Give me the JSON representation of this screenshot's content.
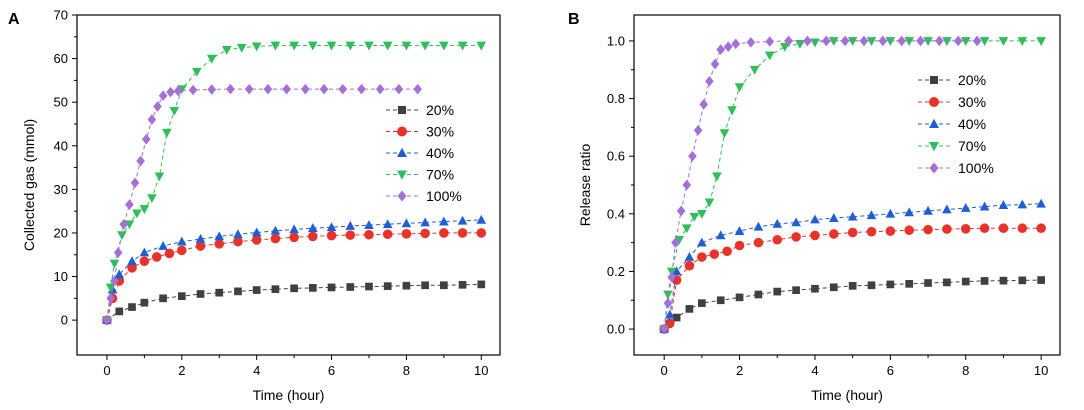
{
  "chart_data": [
    {
      "type": "line",
      "panel_label": "A",
      "xlabel": "Time (hour)",
      "ylabel": "Collected gas (mmol)",
      "xlim": [
        -0.8,
        10.5
      ],
      "ylim": [
        -8,
        70
      ],
      "xticks": [
        "0",
        "2",
        "4",
        "6",
        "8",
        "10"
      ],
      "xtick_values": [
        0,
        2,
        4,
        6,
        8,
        10
      ],
      "yticks": [
        "0",
        "10",
        "20",
        "30",
        "40",
        "50",
        "60",
        "70"
      ],
      "ytick_values": [
        0,
        10,
        20,
        30,
        40,
        50,
        60,
        70
      ],
      "legend_position": "center-right",
      "series": [
        {
          "name": "20%",
          "color": "#404040",
          "marker": "square",
          "x": [
            0,
            0.33,
            0.67,
            1,
            1.5,
            2,
            2.5,
            3,
            3.5,
            4,
            4.5,
            5,
            5.5,
            6,
            6.5,
            7,
            7.5,
            8,
            8.5,
            9,
            9.5,
            10
          ],
          "y": [
            0,
            2,
            3,
            4,
            5,
            5.5,
            6,
            6.3,
            6.6,
            6.9,
            7.1,
            7.3,
            7.4,
            7.5,
            7.6,
            7.7,
            7.8,
            7.9,
            8.0,
            8.0,
            8.1,
            8.2
          ]
        },
        {
          "name": "30%",
          "color": "#e8332a",
          "marker": "circle",
          "x": [
            0,
            0.15,
            0.33,
            0.67,
            1,
            1.33,
            1.67,
            2,
            2.5,
            3,
            3.5,
            4,
            4.5,
            5,
            5.5,
            6,
            6.5,
            7,
            7.5,
            8,
            8.5,
            9,
            9.5,
            10
          ],
          "y": [
            0,
            5,
            9,
            12,
            13.5,
            14.5,
            15.3,
            16,
            17,
            17.5,
            18,
            18.4,
            18.7,
            19,
            19.2,
            19.4,
            19.5,
            19.6,
            19.7,
            19.8,
            19.9,
            20,
            20,
            20
          ]
        },
        {
          "name": "40%",
          "color": "#1f5fd6",
          "marker": "triangle-up",
          "x": [
            0,
            0.15,
            0.33,
            0.67,
            1,
            1.5,
            2,
            2.5,
            3,
            3.5,
            4,
            4.5,
            5,
            5.5,
            6,
            6.5,
            7,
            7.5,
            8,
            8.5,
            9,
            9.5,
            10
          ],
          "y": [
            0,
            7,
            10.5,
            13.5,
            15.5,
            17,
            18,
            18.6,
            19.2,
            19.7,
            20.1,
            20.5,
            20.8,
            21.1,
            21.3,
            21.6,
            21.8,
            22,
            22.2,
            22.4,
            22.6,
            22.8,
            23
          ]
        },
        {
          "name": "70%",
          "color": "#2fbf5a",
          "marker": "triangle-down",
          "x": [
            0,
            0.1,
            0.2,
            0.4,
            0.6,
            0.8,
            1.0,
            1.2,
            1.4,
            1.6,
            1.8,
            2.0,
            2.4,
            2.8,
            3.2,
            3.6,
            4,
            4.5,
            5,
            5.5,
            6,
            6.5,
            7,
            7.5,
            8,
            8.5,
            9,
            9.5,
            10
          ],
          "y": [
            0,
            7.5,
            13,
            19.5,
            22,
            24.5,
            25.5,
            28,
            33,
            43,
            48,
            53,
            57,
            60,
            62,
            62.5,
            62.8,
            63,
            63,
            63,
            63,
            63,
            63,
            63,
            63,
            63,
            63,
            63,
            63
          ]
        },
        {
          "name": "100%",
          "color": "#a66fd8",
          "marker": "diamond",
          "x": [
            0,
            0.1,
            0.2,
            0.3,
            0.45,
            0.6,
            0.75,
            0.9,
            1.05,
            1.2,
            1.35,
            1.5,
            1.7,
            1.9,
            2.3,
            2.8,
            3.3,
            3.8,
            4.3,
            4.8,
            5.3,
            5.8,
            6.3,
            6.8,
            7.3,
            7.8,
            8.3
          ],
          "y": [
            0,
            5,
            9,
            15.5,
            22,
            26.5,
            31.5,
            36.5,
            41.5,
            46,
            49,
            51.5,
            52.3,
            52.6,
            52.8,
            52.9,
            53,
            53,
            53,
            53,
            53,
            53,
            53,
            53,
            53,
            53,
            53
          ]
        }
      ]
    },
    {
      "type": "line",
      "panel_label": "B",
      "xlabel": "Time (hour)",
      "ylabel": "Release ratio",
      "xlim": [
        -0.8,
        10.5
      ],
      "ylim": [
        -0.09,
        1.09
      ],
      "xticks": [
        "0",
        "2",
        "4",
        "6",
        "8",
        "10"
      ],
      "xtick_values": [
        0,
        2,
        4,
        6,
        8,
        10
      ],
      "yticks": [
        "0.0",
        "0.2",
        "0.4",
        "0.6",
        "0.8",
        "1.0"
      ],
      "ytick_values": [
        0,
        0.2,
        0.4,
        0.6,
        0.8,
        1.0
      ],
      "legend_position": "center-right",
      "series": [
        {
          "name": "20%",
          "color": "#404040",
          "marker": "square",
          "x": [
            0,
            0.33,
            0.67,
            1,
            1.5,
            2,
            2.5,
            3,
            3.5,
            4,
            4.5,
            5,
            5.5,
            6,
            6.5,
            7,
            7.5,
            8,
            8.5,
            9,
            9.5,
            10
          ],
          "y": [
            0,
            0.04,
            0.07,
            0.09,
            0.1,
            0.11,
            0.12,
            0.13,
            0.135,
            0.14,
            0.145,
            0.15,
            0.152,
            0.155,
            0.157,
            0.16,
            0.162,
            0.165,
            0.167,
            0.168,
            0.169,
            0.17
          ]
        },
        {
          "name": "30%",
          "color": "#e8332a",
          "marker": "circle",
          "x": [
            0,
            0.15,
            0.33,
            0.67,
            1,
            1.33,
            1.67,
            2,
            2.5,
            3,
            3.5,
            4,
            4.5,
            5,
            5.5,
            6,
            6.5,
            7,
            7.5,
            8,
            8.5,
            9,
            9.5,
            10
          ],
          "y": [
            0,
            0.02,
            0.17,
            0.22,
            0.25,
            0.26,
            0.27,
            0.29,
            0.3,
            0.31,
            0.32,
            0.325,
            0.33,
            0.335,
            0.338,
            0.34,
            0.343,
            0.345,
            0.347,
            0.348,
            0.35,
            0.35,
            0.35,
            0.35
          ]
        },
        {
          "name": "40%",
          "color": "#1f5fd6",
          "marker": "triangle-up",
          "x": [
            0,
            0.15,
            0.33,
            0.67,
            1,
            1.5,
            2,
            2.5,
            3,
            3.5,
            4,
            4.5,
            5,
            5.5,
            6,
            6.5,
            7,
            7.5,
            8,
            8.5,
            9,
            9.5,
            10
          ],
          "y": [
            0,
            0.05,
            0.2,
            0.25,
            0.3,
            0.325,
            0.34,
            0.355,
            0.365,
            0.37,
            0.38,
            0.385,
            0.39,
            0.395,
            0.4,
            0.405,
            0.41,
            0.415,
            0.42,
            0.425,
            0.43,
            0.432,
            0.435
          ]
        },
        {
          "name": "70%",
          "color": "#2fbf5a",
          "marker": "triangle-down",
          "x": [
            0,
            0.1,
            0.2,
            0.4,
            0.6,
            0.8,
            1.0,
            1.2,
            1.4,
            1.6,
            1.8,
            2.0,
            2.4,
            2.8,
            3.2,
            3.6,
            4,
            4.5,
            5,
            5.5,
            6,
            6.5,
            7,
            7.5,
            8,
            8.5,
            9,
            9.5,
            10
          ],
          "y": [
            0,
            0.12,
            0.2,
            0.31,
            0.35,
            0.39,
            0.4,
            0.44,
            0.53,
            0.68,
            0.76,
            0.84,
            0.9,
            0.95,
            0.98,
            0.99,
            0.995,
            1.0,
            1.0,
            1.0,
            1.0,
            1.0,
            1.0,
            1.0,
            1.0,
            1.0,
            1.0,
            1.0,
            1.0
          ]
        },
        {
          "name": "100%",
          "color": "#a66fd8",
          "marker": "diamond",
          "x": [
            0,
            0.1,
            0.2,
            0.3,
            0.45,
            0.6,
            0.75,
            0.9,
            1.05,
            1.2,
            1.35,
            1.5,
            1.7,
            1.9,
            2.3,
            2.8,
            3.3,
            3.8,
            4.3,
            4.8,
            5.3,
            5.8,
            6.3,
            6.8,
            7.3,
            7.8,
            8.3
          ],
          "y": [
            0,
            0.09,
            0.18,
            0.3,
            0.41,
            0.5,
            0.6,
            0.69,
            0.78,
            0.86,
            0.92,
            0.97,
            0.98,
            0.99,
            0.995,
            0.998,
            1.0,
            1.0,
            1.0,
            1.0,
            1.0,
            1.0,
            1.0,
            1.0,
            1.0,
            1.0,
            1.0
          ]
        }
      ]
    }
  ]
}
